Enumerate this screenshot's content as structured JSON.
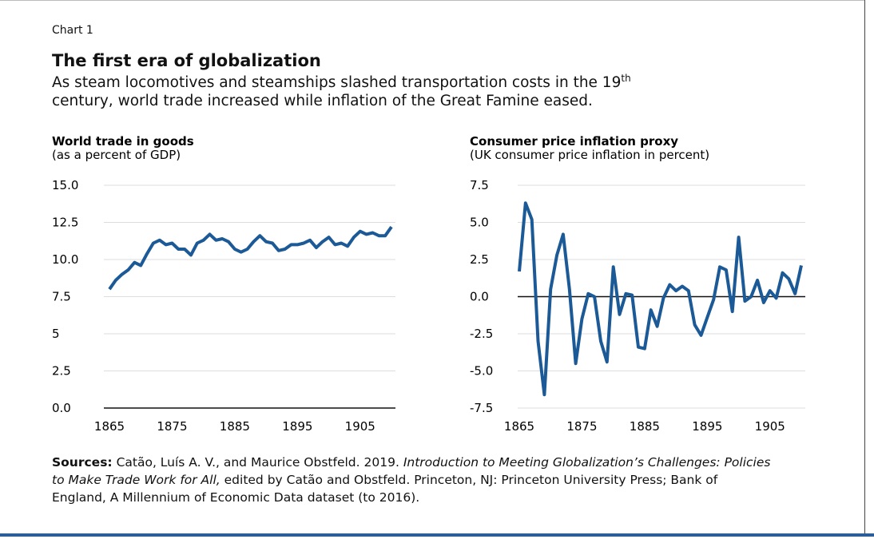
{
  "chart_label": "Chart 1",
  "title": "The first era of globalization",
  "subtitle": {
    "before": "As steam locomotives and steamships slashed transportation costs in the 19",
    "sup": "th",
    "after": "century, world trade increased while inflation of the Great Famine eased."
  },
  "chart_data": [
    {
      "type": "line",
      "title": "World trade in goods",
      "subtitle": "(as a percent of GDP)",
      "x": [
        1865,
        1866,
        1867,
        1868,
        1869,
        1870,
        1871,
        1872,
        1873,
        1874,
        1875,
        1876,
        1877,
        1878,
        1879,
        1880,
        1881,
        1882,
        1883,
        1884,
        1885,
        1886,
        1887,
        1888,
        1889,
        1890,
        1891,
        1892,
        1893,
        1894,
        1895,
        1896,
        1897,
        1898,
        1899,
        1900,
        1901,
        1902,
        1903,
        1904,
        1905,
        1906,
        1907,
        1908,
        1909,
        1910
      ],
      "series": [
        {
          "name": "World trade in goods",
          "color": "#1c5a97",
          "values": [
            8.0,
            8.6,
            9.0,
            9.3,
            9.8,
            9.6,
            10.4,
            11.1,
            11.3,
            11.0,
            11.1,
            10.7,
            10.7,
            10.3,
            11.1,
            11.3,
            11.7,
            11.3,
            11.4,
            11.2,
            10.7,
            10.5,
            10.7,
            11.2,
            11.6,
            11.2,
            11.1,
            10.6,
            10.7,
            11.0,
            11.0,
            11.1,
            11.3,
            10.8,
            11.2,
            11.5,
            11.0,
            11.1,
            10.9,
            11.5,
            11.9,
            11.7,
            11.8,
            11.6,
            11.6,
            12.2
          ]
        }
      ],
      "xlim": [
        1865,
        1910
      ],
      "xticks": [
        1865,
        1875,
        1885,
        1895,
        1905
      ],
      "ylim": [
        0,
        15
      ],
      "yticks": [
        {
          "value": 0,
          "label": "0.0"
        },
        2.5,
        5,
        {
          "value": 7.5,
          "label": "7.5"
        },
        {
          "value": 10,
          "label": "10.0"
        },
        12.5,
        {
          "value": 15,
          "label": "15.0"
        }
      ],
      "grid": true
    },
    {
      "type": "line",
      "title": "Consumer price inflation proxy",
      "subtitle": "(UK consumer price inflation in percent)",
      "x": [
        1865,
        1866,
        1867,
        1868,
        1869,
        1870,
        1871,
        1872,
        1873,
        1874,
        1875,
        1876,
        1877,
        1878,
        1879,
        1880,
        1881,
        1882,
        1883,
        1884,
        1885,
        1886,
        1887,
        1888,
        1889,
        1890,
        1891,
        1892,
        1893,
        1894,
        1895,
        1896,
        1897,
        1898,
        1899,
        1900,
        1901,
        1902,
        1903,
        1904,
        1905,
        1906,
        1907,
        1908,
        1909,
        1910
      ],
      "series": [
        {
          "name": "Consumer price inflation proxy",
          "color": "#1c5a97",
          "values": [
            1.7,
            6.3,
            5.2,
            -3.0,
            -6.6,
            0.5,
            2.8,
            4.2,
            0.5,
            -4.5,
            -1.5,
            0.2,
            0.0,
            -3.0,
            -4.4,
            2.0,
            -1.2,
            0.2,
            0.1,
            -3.4,
            -3.5,
            -0.9,
            -2.0,
            -0.1,
            0.8,
            0.4,
            0.7,
            0.4,
            -1.9,
            -2.6,
            -1.4,
            -0.2,
            2.0,
            1.8,
            -1.0,
            4.0,
            -0.3,
            0.0,
            1.1,
            -0.4,
            0.4,
            -0.1,
            1.6,
            1.2,
            0.2,
            2.1
          ]
        }
      ],
      "xlim": [
        1865,
        1910
      ],
      "xticks": [
        1865,
        1875,
        1885,
        1895,
        1905
      ],
      "ylim": [
        -7.5,
        7.5
      ],
      "yticks": [
        {
          "value": -7.5,
          "label": "-7.5"
        },
        {
          "value": -5,
          "label": "-5.0"
        },
        {
          "value": -2.5,
          "label": "-2.5"
        },
        {
          "value": 0,
          "label": "0.0"
        },
        {
          "value": 2.5,
          "label": "2.5"
        },
        {
          "value": 5,
          "label": "5.0"
        },
        {
          "value": 7.5,
          "label": "7.5"
        }
      ],
      "grid": true
    }
  ],
  "source": {
    "label": "Sources:",
    "parts": [
      {
        "text": "Catão, Luís A. V., and Maurice Obstfeld. 2019.",
        "italic": false
      },
      {
        "text": "Introduction to Meeting Globalization’s Challenges: Policies to Make Trade Work for All,",
        "italic": true
      },
      {
        "text": "edited by Catão and Obstfeld. Princeton, NJ: Princeton University Press; Bank of England, A Millennium of Economic Data dataset (to 2016).",
        "italic": false
      }
    ]
  }
}
